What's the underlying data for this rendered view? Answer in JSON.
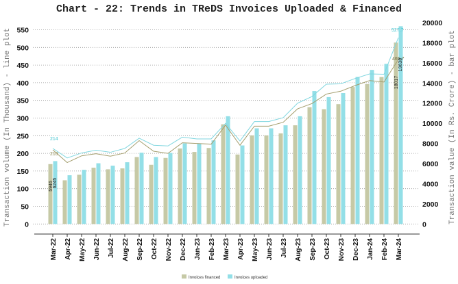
{
  "chart_data": {
    "type": "bar+line",
    "title": "Chart - 22: Trends in TReDS Invoices Uploaded & Financed",
    "ylabel_left": "Transaction volume (In Thousand) - line plot",
    "ylabel_right": "Transaction value (In Rs. Crore) - bar plot",
    "ylim_left": [
      0,
      550
    ],
    "ylim_right": [
      0,
      20000
    ],
    "left_ticks": [
      "0",
      "50",
      "100",
      "150",
      "200",
      "250",
      "300",
      "350",
      "400",
      "450",
      "500",
      "550"
    ],
    "right_ticks": [
      "0",
      "2000",
      "4000",
      "6000",
      "8000",
      "10000",
      "12000",
      "14000",
      "16000",
      "18000",
      "20000"
    ],
    "grid": true,
    "legend_position": "bottom",
    "categories": [
      "Mar-22",
      "Apr-22",
      "May-22",
      "Jun-22",
      "Jul-22",
      "Aug-22",
      "Sep-22",
      "Oct-22",
      "Nov-22",
      "Dec-22",
      "Jan-23",
      "Feb-23",
      "Mar-23",
      "Apr-23",
      "May-23",
      "Jun-23",
      "Jul-23",
      "Aug-23",
      "Sep-23",
      "Oct-23",
      "Nov-23",
      "Dec-23",
      "Jan-24",
      "Feb-24",
      "Mar-24"
    ],
    "bar_series": [
      {
        "name": "Invoices financed",
        "color": "#c6c9a6",
        "values": [
          5946,
          4340,
          4890,
          5590,
          5430,
          5520,
          6650,
          5880,
          6560,
          7500,
          7150,
          7550,
          9900,
          6900,
          8800,
          8800,
          9000,
          9800,
          11600,
          11400,
          11900,
          13600,
          13900,
          14600,
          18017
        ]
      },
      {
        "name": "Invoices uploaded",
        "color": "#93dfe7",
        "values": [
          6245,
          4840,
          5380,
          6030,
          5790,
          6130,
          7080,
          6650,
          7060,
          8000,
          8000,
          8300,
          10700,
          7800,
          9500,
          9500,
          9800,
          10700,
          13200,
          12600,
          13000,
          14600,
          15300,
          15900,
          19638
        ]
      }
    ],
    "line_series": [
      {
        "name": "Invoices financed",
        "color": "#a39d6d",
        "values": [
          210,
          174,
          193,
          199,
          192,
          201,
          236,
          206,
          200,
          230,
          228,
          226,
          280,
          223,
          277,
          277,
          288,
          326,
          341,
          368,
          376,
          392,
          406,
          402,
          465.7
        ]
      },
      {
        "name": "Invoices uploaded",
        "color": "#7fd6df",
        "values": [
          214,
          187,
          201,
          209,
          203,
          214,
          243,
          223,
          221,
          246,
          241,
          241,
          285,
          235,
          290,
          290,
          301,
          342,
          361,
          396,
          397,
          412,
          425,
          424,
          527.7
        ]
      }
    ],
    "data_labels": {
      "line_first_uploaded": "214",
      "line_first_financed": "210",
      "line_last_uploaded": "527.7",
      "line_last_financed": "465.7",
      "bar_first_financed": "5946",
      "bar_first_uploaded": "6245",
      "bar_last_financed": "18017",
      "bar_last_uploaded": "19638"
    }
  }
}
